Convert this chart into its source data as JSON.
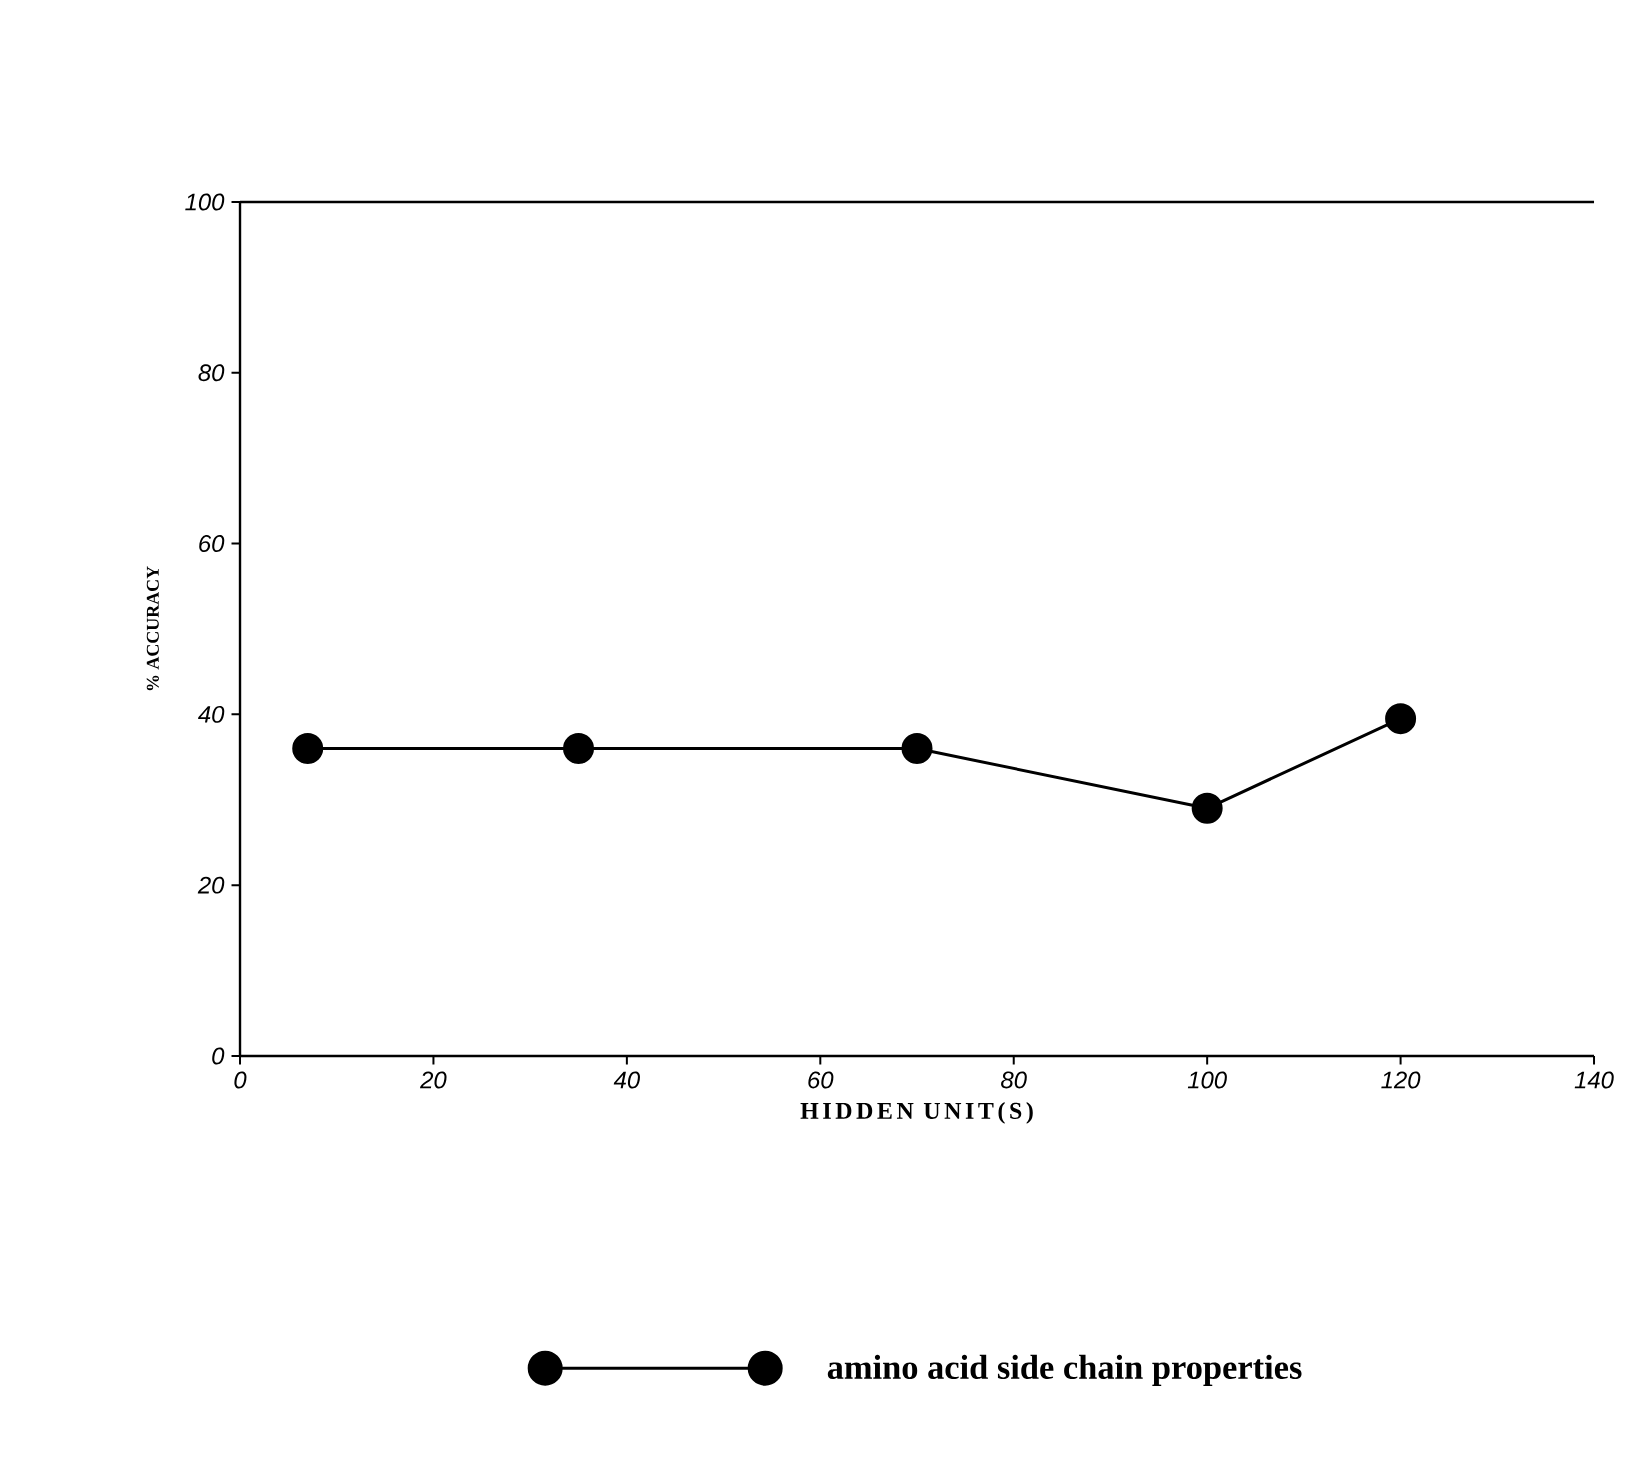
{
  "chart_data": {
    "type": "line",
    "xlabel": "HIDDEN UNIT(S)",
    "ylabel": "% ACCURACY",
    "x": [
      7,
      35,
      70,
      100,
      120
    ],
    "series": [
      {
        "name": "amino acid side chain properties",
        "color": "#000000",
        "values": [
          36,
          36,
          36,
          29,
          39.5
        ]
      }
    ],
    "xlim": [
      0,
      140
    ],
    "xticks": [
      0,
      20,
      40,
      60,
      80,
      100,
      120,
      140
    ],
    "ylim": [
      0,
      100
    ],
    "yticks": [
      0,
      20,
      40,
      60,
      80,
      100
    ],
    "marker": "circle",
    "line_style": "solid",
    "legend": "bottom"
  }
}
